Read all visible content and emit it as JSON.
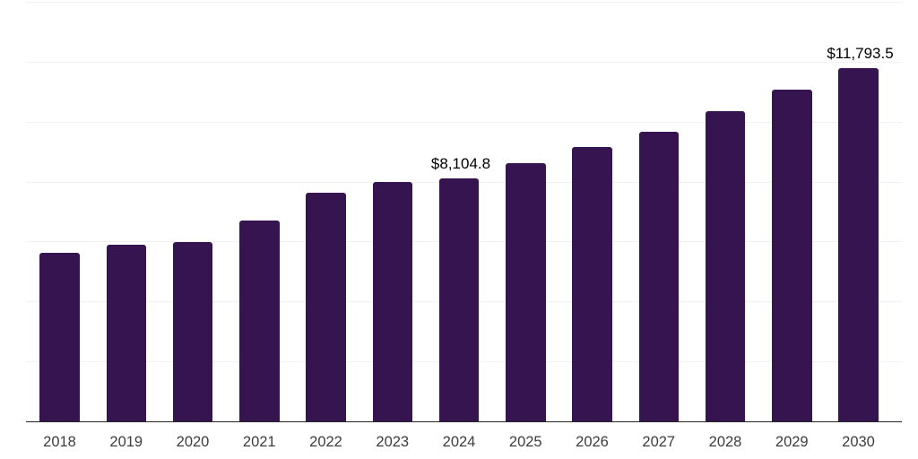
{
  "chart": {
    "background_color": "#ffffff",
    "bar_color": "#36144f",
    "grid_color": "#f2f2f2",
    "axis_line_color": "#262626",
    "tick_label_color": "#3d3d3d",
    "data_label_color": "#000000"
  },
  "chart_data": {
    "type": "bar",
    "title": "",
    "xlabel": "",
    "ylabel": "",
    "categories": [
      "2018",
      "2019",
      "2020",
      "2021",
      "2022",
      "2023",
      "2024",
      "2025",
      "2026",
      "2027",
      "2028",
      "2029",
      "2030"
    ],
    "values": [
      5620,
      5890,
      5980,
      6700,
      7620,
      7990,
      8104.8,
      8610,
      9150,
      9660,
      10350,
      11070,
      11793.5
    ],
    "data_labels": {
      "2024": "$8,104.8",
      "2030": "$11,793.5"
    },
    "ylim": [
      0,
      14000
    ],
    "grid_interval": 2000,
    "grid": true,
    "legend": false,
    "y_axis_labels_visible": false
  }
}
